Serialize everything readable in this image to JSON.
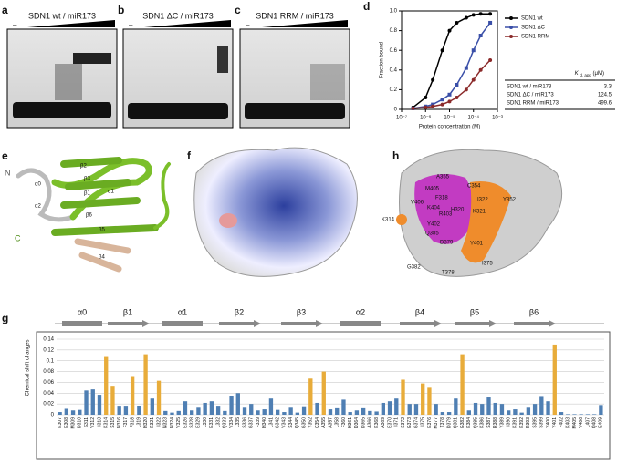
{
  "panel_labels": [
    "a",
    "b",
    "c",
    "d",
    "e",
    "f",
    "g",
    "h"
  ],
  "gels": [
    {
      "title": "SDN1 wt / miR173",
      "minus": "–"
    },
    {
      "title": "SDN1 ΔC / miR173",
      "minus": "–"
    },
    {
      "title": "SDN1 RRM / miR173",
      "minus": "–"
    }
  ],
  "chart_data": [
    {
      "type": "line",
      "xlabel": "Protein concentration (M)",
      "ylabel": "Fraction bound",
      "log_x": true,
      "xlim": [
        1e-07,
        0.001
      ],
      "xticks": [
        {
          "value": 1e-07,
          "label": "10⁻⁷"
        },
        {
          "value": 1e-06,
          "label": "10⁻⁶"
        },
        {
          "value": 1e-05,
          "label": "10⁻⁵"
        },
        {
          "value": 0.0001,
          "label": "10⁻⁴"
        },
        {
          "value": 0.001,
          "label": "10⁻³"
        }
      ],
      "ylim": [
        0,
        1
      ],
      "yticks": [
        0,
        0.2,
        0.4,
        0.6,
        0.8,
        {
          "value": 1,
          "label": "1.0"
        }
      ],
      "x": [
        3e-07,
        1e-06,
        2e-06,
        5e-06,
        1e-05,
        2e-05,
        5e-05,
        0.0001,
        0.0002,
        0.0005
      ],
      "series": [
        {
          "name": "SDN1 wt",
          "color": "#000000",
          "values": [
            0.02,
            0.12,
            0.3,
            0.6,
            0.8,
            0.88,
            0.93,
            0.96,
            0.97,
            0.97
          ]
        },
        {
          "name": "SDN1 ΔC",
          "color": "#3a4fa8",
          "values": [
            0.01,
            0.03,
            0.05,
            0.1,
            0.15,
            0.25,
            0.42,
            0.6,
            0.75,
            0.88
          ]
        },
        {
          "name": "SDN1 RRM",
          "color": "#8b2a2a",
          "values": [
            0.01,
            0.02,
            0.03,
            0.05,
            0.08,
            0.12,
            0.2,
            0.3,
            0.4,
            0.5
          ]
        }
      ]
    },
    {
      "type": "bar",
      "ylabel": "Chemical shift changes",
      "ylim": [
        0,
        0.14
      ],
      "yticks": [
        0,
        0.02,
        0.04,
        0.06,
        0.08,
        0.1,
        0.12,
        0.14
      ],
      "grid": true,
      "categories": [
        "K307",
        "E308",
        "M309",
        "D310",
        "S311",
        "V312",
        "I313",
        "K314",
        "S315",
        "N316",
        "F317",
        "F318",
        "L319",
        "H320",
        "K321",
        "I322",
        "N323",
        "N324",
        "V325",
        "E326",
        "S328",
        "E329",
        "L330",
        "E331",
        "L332",
        "Q333",
        "V334",
        "L335",
        "S336",
        "G337",
        "F339",
        "H340",
        "L341",
        "G342",
        "V343",
        "S344",
        "Q345",
        "G350",
        "Y352",
        "C354",
        "A355",
        "A357",
        "L358",
        "F360",
        "H361",
        "D364",
        "D365",
        "A366",
        "K368",
        "A369",
        "E370",
        "I371",
        "S372",
        "G373",
        "G374",
        "I375",
        "E376",
        "M377",
        "T378",
        "D379",
        "Q381",
        "G382",
        "K384",
        "Q385",
        "K386",
        "S387",
        "R388",
        "Y389",
        "I390",
        "K391",
        "K392",
        "R393",
        "S395",
        "S399",
        "Y400",
        "Y401",
        "F402",
        "K403",
        "M405",
        "V406",
        "L407",
        "Q408",
        "E409"
      ],
      "values": [
        0.005,
        0.011,
        0.008,
        0.009,
        0.045,
        0.047,
        0.037,
        0.107,
        0.052,
        0.015,
        0.015,
        0.07,
        0.016,
        0.112,
        0.03,
        0.063,
        0.007,
        0.004,
        0.007,
        0.025,
        0.008,
        0.013,
        0.022,
        0.025,
        0.015,
        0.007,
        0.035,
        0.04,
        0.013,
        0.02,
        0.008,
        0.01,
        0.03,
        0.009,
        0.005,
        0.013,
        0.004,
        0.014,
        0.067,
        0.022,
        0.08,
        0.01,
        0.012,
        0.028,
        0.005,
        0.008,
        0.012,
        0.007,
        0.006,
        0.022,
        0.025,
        0.03,
        0.065,
        0.02,
        0.02,
        0.058,
        0.05,
        0.02,
        0.005,
        0.005,
        0.03,
        0.112,
        0.008,
        0.022,
        0.02,
        0.032,
        0.022,
        0.02,
        0.008,
        0.01,
        0.004,
        0.013,
        0.02,
        0.033,
        0.025,
        0.13,
        0.005,
        0.001,
        0.001,
        0.001,
        0.001,
        0.001,
        0.018
      ],
      "color": "#4f7fb3",
      "highlight_color": "#e8ac3a",
      "highlight": [
        "K314",
        "S315",
        "F318",
        "H320",
        "I322",
        "Y352",
        "A355",
        "S372",
        "I375",
        "E376",
        "G382",
        "Y401"
      ],
      "structure": [
        "α0",
        "β1",
        "α1",
        "β2",
        "β3",
        "α2",
        "β4",
        "β5",
        "β6"
      ]
    }
  ],
  "table": {
    "header": "K",
    "header_sub": "d, app",
    "header_unit": "(μM)",
    "rows": [
      [
        "SDN1 wt / miR173",
        "3.3"
      ],
      [
        "SDN1 ΔC / miR173",
        "124.5"
      ],
      [
        "SDN1 RRM / miR173",
        "499.6"
      ]
    ]
  },
  "panel_e": {
    "labels": [
      "N",
      "C",
      "α0",
      "β2",
      "β3",
      "β1",
      "α1",
      "α2",
      "β6",
      "β5",
      "β4"
    ]
  },
  "panel_h": {
    "labels": [
      "A355",
      "C354",
      "M405",
      "F318",
      "I322",
      "Y352",
      "V406",
      "K404",
      "H320",
      "R403",
      "K321",
      "K314",
      "Y402",
      "Q385",
      "D379",
      "Y401",
      "G382",
      "I375",
      "T378"
    ]
  }
}
